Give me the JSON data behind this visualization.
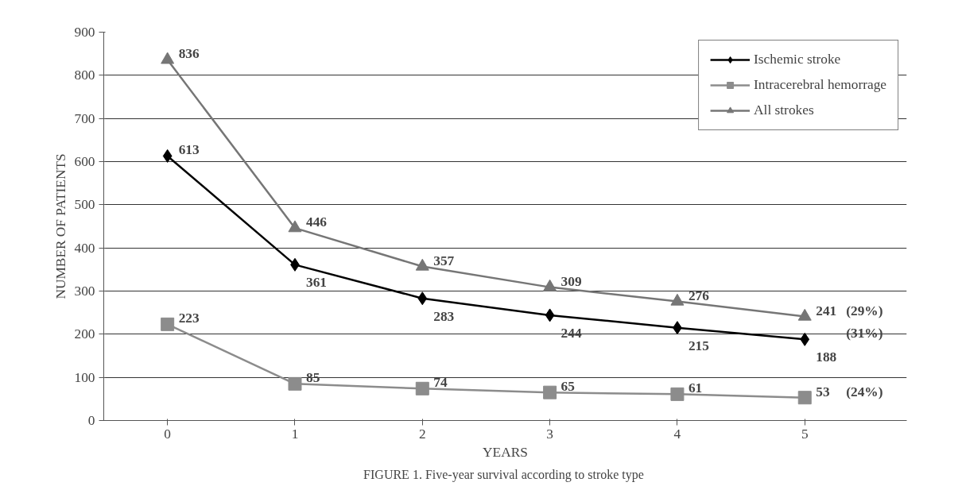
{
  "chart_data": {
    "type": "line",
    "xlabel": "YEARS",
    "ylabel": "NUMBER OF PATIENTS",
    "categories": [
      "0",
      "1",
      "2",
      "3",
      "4",
      "5"
    ],
    "series": [
      {
        "name": "Ischemic stroke",
        "color": "#000000",
        "marker": "diamond",
        "values": [
          613,
          361,
          283,
          244,
          215,
          188
        ]
      },
      {
        "name": "Intracerebral hemorrage",
        "color": "#8c8c8c",
        "marker": "square",
        "values": [
          223,
          85,
          74,
          65,
          61,
          53
        ]
      },
      {
        "name": "All strokes",
        "color": "#767676",
        "marker": "triangle",
        "values": [
          836,
          446,
          357,
          309,
          276,
          241
        ]
      }
    ],
    "ylim": [
      0,
      900
    ],
    "yticks": [
      0,
      100,
      200,
      300,
      400,
      500,
      600,
      700,
      800,
      900
    ],
    "grid": "y",
    "legend": "top right",
    "data_labels": true,
    "line_style": "solid",
    "annotations": [
      {
        "text": "(29%)",
        "x": "5",
        "y": 241
      },
      {
        "text": "(31%)",
        "x": "5",
        "y": 188
      },
      {
        "text": "(24%)",
        "x": "5",
        "y": 53
      },
      "FIGURE 1.  Five-year survival according to stroke type"
    ]
  }
}
